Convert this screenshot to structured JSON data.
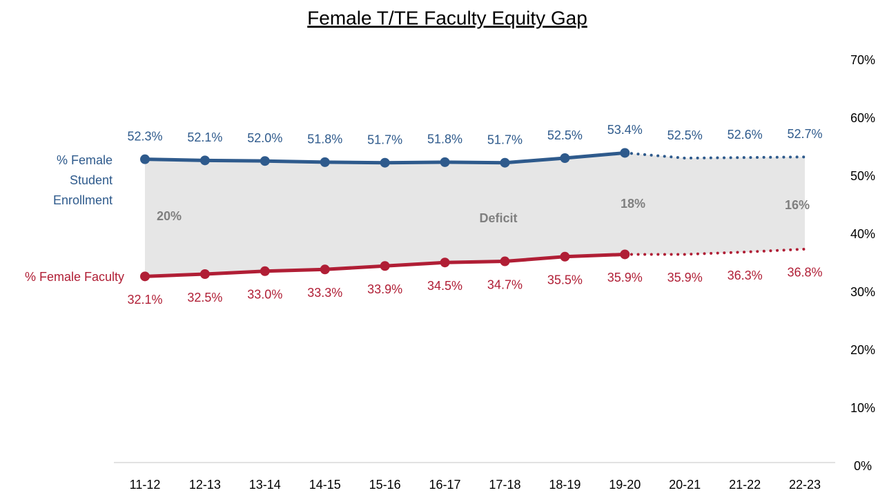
{
  "chart_data": {
    "type": "line",
    "title": "Female T/TE Faculty Equity Gap",
    "categories": [
      "11-12",
      "12-13",
      "13-14",
      "14-15",
      "15-16",
      "16-17",
      "17-18",
      "18-19",
      "19-20",
      "20-21",
      "21-22",
      "22-23"
    ],
    "projected_from": "19-20",
    "series": [
      {
        "name": "% Female Student Enrollment",
        "color": "#2e5a8c",
        "values": [
          52.3,
          52.1,
          52.0,
          51.8,
          51.7,
          51.8,
          51.7,
          52.5,
          53.4,
          52.5,
          52.6,
          52.7
        ],
        "value_labels": [
          "52.3%",
          "52.1%",
          "52.0%",
          "51.8%",
          "51.7%",
          "51.8%",
          "51.7%",
          "52.5%",
          "53.4%",
          "52.5%",
          "52.6%",
          "52.7%"
        ]
      },
      {
        "name": "% Female Faculty",
        "color": "#b01e35",
        "values": [
          32.1,
          32.5,
          33.0,
          33.3,
          33.9,
          34.5,
          34.7,
          35.5,
          35.9,
          35.9,
          36.3,
          36.8
        ],
        "value_labels": [
          "32.1%",
          "32.5%",
          "33.0%",
          "33.3%",
          "33.9%",
          "34.5%",
          "34.7%",
          "35.5%",
          "35.9%",
          "35.9%",
          "36.3%",
          "36.8%"
        ]
      }
    ],
    "gap_color": "#e6e6e6",
    "annotations": [
      "20%",
      "Deficit",
      "18%",
      "16%"
    ],
    "ylim": [
      0,
      70
    ],
    "yticks": [
      {
        "value": 0,
        "label": "0%"
      },
      {
        "value": 10,
        "label": "10%"
      },
      {
        "value": 20,
        "label": "20%"
      },
      {
        "value": 30,
        "label": "30%"
      },
      {
        "value": 40,
        "label": "40%"
      },
      {
        "value": 50,
        "label": "50%"
      },
      {
        "value": 60,
        "label": "60%"
      },
      {
        "value": 70,
        "label": "70%"
      }
    ],
    "grid": false
  }
}
